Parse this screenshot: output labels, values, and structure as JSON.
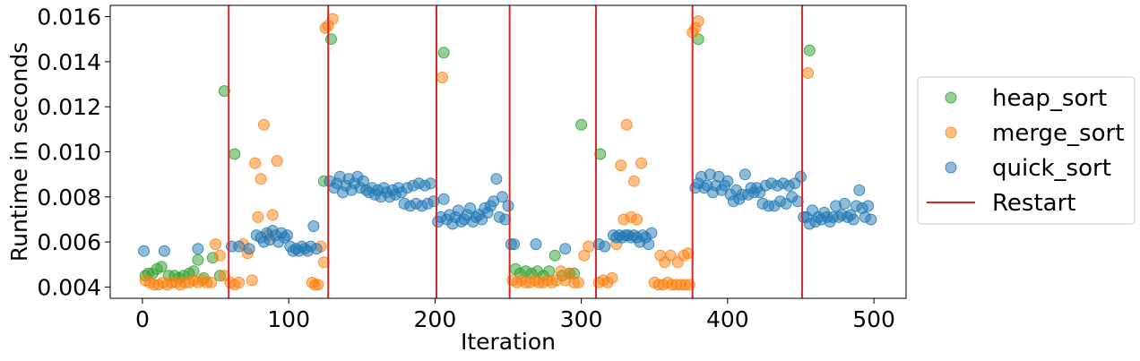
{
  "chart_data": {
    "type": "scatter",
    "xlabel": "Iteration",
    "ylabel": "Runtime in seconds",
    "xlim": [
      -22,
      522
    ],
    "ylim": [
      0.0035,
      0.0165
    ],
    "x_ticks": [
      "0",
      "100",
      "200",
      "300",
      "400",
      "500"
    ],
    "x_tick_values": [
      0,
      100,
      200,
      300,
      400,
      500
    ],
    "y_ticks": [
      "0.004",
      "0.006",
      "0.008",
      "0.010",
      "0.012",
      "0.014",
      "0.016"
    ],
    "y_tick_values": [
      0.004,
      0.006,
      0.008,
      0.01,
      0.012,
      0.014,
      0.016
    ],
    "grid": false,
    "legend_position": "outside-right",
    "restart_x": [
      59,
      127,
      201,
      251,
      310,
      376,
      451
    ],
    "series": [
      {
        "name": "heap_sort",
        "color": "#2ca02c",
        "points": [
          [
            2,
            0.0045
          ],
          [
            4,
            0.0046
          ],
          [
            7,
            0.0046
          ],
          [
            10,
            0.0048
          ],
          [
            13,
            0.0049
          ],
          [
            18,
            0.0045
          ],
          [
            22,
            0.0045
          ],
          [
            25,
            0.0044
          ],
          [
            28,
            0.0045
          ],
          [
            32,
            0.0046
          ],
          [
            35,
            0.0047
          ],
          [
            38,
            0.0052
          ],
          [
            42,
            0.0044
          ],
          [
            48,
            0.0053
          ],
          [
            53,
            0.0045
          ],
          [
            56,
            0.0127
          ],
          [
            63,
            0.0099
          ],
          [
            124,
            0.0087
          ],
          [
            129,
            0.015
          ],
          [
            206,
            0.0144
          ],
          [
            255,
            0.0048
          ],
          [
            258,
            0.0046
          ],
          [
            262,
            0.0047
          ],
          [
            266,
            0.0046
          ],
          [
            270,
            0.0047
          ],
          [
            274,
            0.0045
          ],
          [
            278,
            0.0047
          ],
          [
            282,
            0.0054
          ],
          [
            287,
            0.0045
          ],
          [
            292,
            0.0046
          ],
          [
            295,
            0.0046
          ],
          [
            300,
            0.0112
          ],
          [
            313,
            0.0099
          ],
          [
            380,
            0.015
          ],
          [
            456,
            0.0145
          ]
        ]
      },
      {
        "name": "merge_sort",
        "color": "#ff7f0e",
        "points": [
          [
            2,
            0.0043
          ],
          [
            5,
            0.0042
          ],
          [
            8,
            0.0041
          ],
          [
            11,
            0.0041
          ],
          [
            14,
            0.0042
          ],
          [
            17,
            0.0041
          ],
          [
            20,
            0.0042
          ],
          [
            23,
            0.0042
          ],
          [
            26,
            0.0041
          ],
          [
            29,
            0.0042
          ],
          [
            32,
            0.0042
          ],
          [
            35,
            0.0043
          ],
          [
            38,
            0.0042
          ],
          [
            41,
            0.0043
          ],
          [
            44,
            0.0042
          ],
          [
            47,
            0.0042
          ],
          [
            50,
            0.0059
          ],
          [
            53,
            0.0054
          ],
          [
            56,
            0.0045
          ],
          [
            60,
            0.0042
          ],
          [
            63,
            0.0041
          ],
          [
            66,
            0.0042
          ],
          [
            69,
            0.0059
          ],
          [
            72,
            0.0055
          ],
          [
            75,
            0.0043
          ],
          [
            77,
            0.0095
          ],
          [
            79,
            0.0071
          ],
          [
            81,
            0.0088
          ],
          [
            83,
            0.0112
          ],
          [
            86,
            0.0063
          ],
          [
            89,
            0.0072
          ],
          [
            92,
            0.0096
          ],
          [
            116,
            0.0042
          ],
          [
            118,
            0.0041
          ],
          [
            120,
            0.0041
          ],
          [
            122,
            0.0058
          ],
          [
            124,
            0.0051
          ],
          [
            125,
            0.0155
          ],
          [
            127,
            0.0156
          ],
          [
            130,
            0.0159
          ],
          [
            205,
            0.0133
          ],
          [
            253,
            0.0043
          ],
          [
            256,
            0.0042
          ],
          [
            259,
            0.0043
          ],
          [
            262,
            0.0042
          ],
          [
            265,
            0.0042
          ],
          [
            268,
            0.0043
          ],
          [
            271,
            0.0042
          ],
          [
            274,
            0.0042
          ],
          [
            277,
            0.0043
          ],
          [
            280,
            0.0042
          ],
          [
            283,
            0.0043
          ],
          [
            286,
            0.0047
          ],
          [
            289,
            0.0043
          ],
          [
            292,
            0.0046
          ],
          [
            295,
            0.0042
          ],
          [
            298,
            0.0042
          ],
          [
            302,
            0.0054
          ],
          [
            305,
            0.0058
          ],
          [
            312,
            0.0042
          ],
          [
            315,
            0.0043
          ],
          [
            318,
            0.0042
          ],
          [
            321,
            0.0044
          ],
          [
            324,
            0.0059
          ],
          [
            327,
            0.0094
          ],
          [
            329,
            0.007
          ],
          [
            331,
            0.0112
          ],
          [
            334,
            0.0071
          ],
          [
            336,
            0.0087
          ],
          [
            338,
            0.007
          ],
          [
            341,
            0.0095
          ],
          [
            350,
            0.0042
          ],
          [
            353,
            0.0041
          ],
          [
            356,
            0.0041
          ],
          [
            359,
            0.0042
          ],
          [
            362,
            0.0041
          ],
          [
            365,
            0.0041
          ],
          [
            368,
            0.0041
          ],
          [
            371,
            0.0041
          ],
          [
            374,
            0.0041
          ],
          [
            354,
            0.0054
          ],
          [
            357,
            0.0051
          ],
          [
            361,
            0.0054
          ],
          [
            366,
            0.0051
          ],
          [
            370,
            0.0054
          ],
          [
            373,
            0.0055
          ],
          [
            376,
            0.0153
          ],
          [
            378,
            0.0155
          ],
          [
            380,
            0.0158
          ],
          [
            455,
            0.0135
          ]
        ]
      },
      {
        "name": "quick_sort",
        "color": "#1f77b4",
        "points": [
          [
            1,
            0.0056
          ],
          [
            15,
            0.0056
          ],
          [
            38,
            0.0057
          ],
          [
            61,
            0.0058
          ],
          [
            66,
            0.0058
          ],
          [
            73,
            0.0057
          ],
          [
            78,
            0.0063
          ],
          [
            81,
            0.0062
          ],
          [
            83,
            0.006
          ],
          [
            85,
            0.0064
          ],
          [
            87,
            0.0061
          ],
          [
            89,
            0.0065
          ],
          [
            91,
            0.0063
          ],
          [
            93,
            0.006
          ],
          [
            95,
            0.0064
          ],
          [
            97,
            0.0062
          ],
          [
            99,
            0.0063
          ],
          [
            101,
            0.0058
          ],
          [
            103,
            0.0056
          ],
          [
            105,
            0.0057
          ],
          [
            107,
            0.0056
          ],
          [
            109,
            0.0058
          ],
          [
            111,
            0.0057
          ],
          [
            113,
            0.0056
          ],
          [
            115,
            0.0058
          ],
          [
            117,
            0.0067
          ],
          [
            119,
            0.0057
          ],
          [
            128,
            0.0087
          ],
          [
            131,
            0.0084
          ],
          [
            133,
            0.0086
          ],
          [
            135,
            0.0089
          ],
          [
            137,
            0.0082
          ],
          [
            139,
            0.0085
          ],
          [
            141,
            0.0088
          ],
          [
            143,
            0.0083
          ],
          [
            145,
            0.0086
          ],
          [
            147,
            0.0089
          ],
          [
            149,
            0.0084
          ],
          [
            151,
            0.0087
          ],
          [
            153,
            0.0083
          ],
          [
            155,
            0.0082
          ],
          [
            157,
            0.0084
          ],
          [
            159,
            0.0081
          ],
          [
            161,
            0.0083
          ],
          [
            163,
            0.008
          ],
          [
            165,
            0.0084
          ],
          [
            167,
            0.0082
          ],
          [
            169,
            0.008
          ],
          [
            171,
            0.0083
          ],
          [
            173,
            0.0081
          ],
          [
            175,
            0.0084
          ],
          [
            177,
            0.0082
          ],
          [
            179,
            0.0077
          ],
          [
            181,
            0.0084
          ],
          [
            183,
            0.0076
          ],
          [
            185,
            0.0085
          ],
          [
            187,
            0.0077
          ],
          [
            189,
            0.0086
          ],
          [
            191,
            0.0076
          ],
          [
            193,
            0.0085
          ],
          [
            195,
            0.0077
          ],
          [
            197,
            0.0086
          ],
          [
            199,
            0.0078
          ],
          [
            202,
            0.0069
          ],
          [
            204,
            0.0071
          ],
          [
            206,
            0.0079
          ],
          [
            208,
            0.007
          ],
          [
            210,
            0.0072
          ],
          [
            212,
            0.0068
          ],
          [
            214,
            0.0071
          ],
          [
            216,
            0.0074
          ],
          [
            218,
            0.0069
          ],
          [
            220,
            0.007
          ],
          [
            222,
            0.0072
          ],
          [
            224,
            0.0075
          ],
          [
            226,
            0.0069
          ],
          [
            228,
            0.0071
          ],
          [
            230,
            0.0072
          ],
          [
            232,
            0.007
          ],
          [
            234,
            0.0075
          ],
          [
            236,
            0.0073
          ],
          [
            238,
            0.0076
          ],
          [
            240,
            0.0078
          ],
          [
            242,
            0.0088
          ],
          [
            244,
            0.0071
          ],
          [
            246,
            0.008
          ],
          [
            248,
            0.007
          ],
          [
            250,
            0.0076
          ],
          [
            252,
            0.0059
          ],
          [
            254,
            0.0059
          ],
          [
            269,
            0.0059
          ],
          [
            289,
            0.0057
          ],
          [
            312,
            0.0059
          ],
          [
            316,
            0.0058
          ],
          [
            322,
            0.0063
          ],
          [
            324,
            0.0062
          ],
          [
            326,
            0.0063
          ],
          [
            328,
            0.0062
          ],
          [
            330,
            0.0063
          ],
          [
            332,
            0.0063
          ],
          [
            334,
            0.0062
          ],
          [
            336,
            0.0063
          ],
          [
            338,
            0.0062
          ],
          [
            340,
            0.006
          ],
          [
            342,
            0.0063
          ],
          [
            344,
            0.0062
          ],
          [
            346,
            0.0059
          ],
          [
            348,
            0.0064
          ],
          [
            378,
            0.0084
          ],
          [
            380,
            0.0086
          ],
          [
            382,
            0.0089
          ],
          [
            384,
            0.0084
          ],
          [
            386,
            0.0085
          ],
          [
            388,
            0.009
          ],
          [
            390,
            0.0082
          ],
          [
            392,
            0.0085
          ],
          [
            394,
            0.0089
          ],
          [
            396,
            0.0083
          ],
          [
            398,
            0.0085
          ],
          [
            400,
            0.0087
          ],
          [
            402,
            0.0081
          ],
          [
            404,
            0.0078
          ],
          [
            406,
            0.0083
          ],
          [
            408,
            0.0079
          ],
          [
            410,
            0.0081
          ],
          [
            412,
            0.009
          ],
          [
            414,
            0.0081
          ],
          [
            416,
            0.0084
          ],
          [
            418,
            0.0082
          ],
          [
            420,
            0.0084
          ],
          [
            422,
            0.0082
          ],
          [
            424,
            0.0077
          ],
          [
            426,
            0.0085
          ],
          [
            428,
            0.0076
          ],
          [
            430,
            0.0086
          ],
          [
            432,
            0.0076
          ],
          [
            434,
            0.0085
          ],
          [
            436,
            0.0078
          ],
          [
            438,
            0.0086
          ],
          [
            440,
            0.0077
          ],
          [
            442,
            0.0085
          ],
          [
            444,
            0.008
          ],
          [
            446,
            0.0086
          ],
          [
            448,
            0.0078
          ],
          [
            450,
            0.0089
          ],
          [
            452,
            0.0071
          ],
          [
            454,
            0.0071
          ],
          [
            456,
            0.0068
          ],
          [
            458,
            0.0074
          ],
          [
            460,
            0.0069
          ],
          [
            462,
            0.0071
          ],
          [
            464,
            0.007
          ],
          [
            466,
            0.0073
          ],
          [
            468,
            0.0071
          ],
          [
            470,
            0.0069
          ],
          [
            472,
            0.0071
          ],
          [
            474,
            0.0076
          ],
          [
            476,
            0.0071
          ],
          [
            478,
            0.0072
          ],
          [
            480,
            0.0077
          ],
          [
            482,
            0.0071
          ],
          [
            484,
            0.0072
          ],
          [
            486,
            0.007
          ],
          [
            488,
            0.0076
          ],
          [
            490,
            0.0083
          ],
          [
            492,
            0.0075
          ],
          [
            494,
            0.0071
          ],
          [
            496,
            0.0076
          ],
          [
            498,
            0.007
          ]
        ]
      }
    ],
    "restart_label": "Restart",
    "restart_color": "#d62728"
  }
}
